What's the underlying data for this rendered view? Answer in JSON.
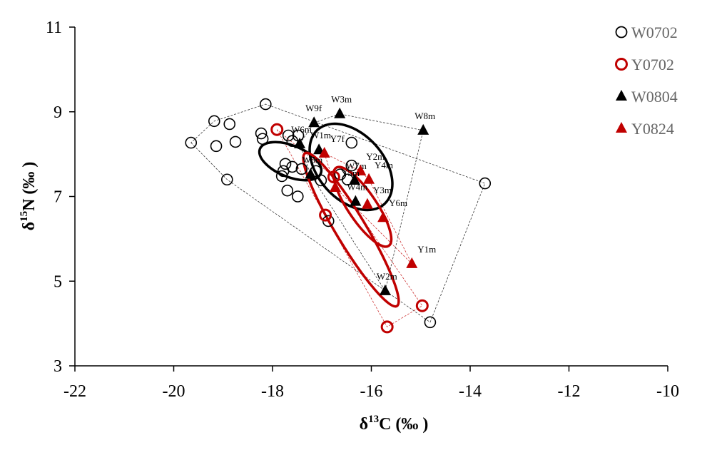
{
  "chart_data": {
    "type": "scatter",
    "xlabel": "δ13C (‰ )",
    "ylabel": "δ15N (‰ )",
    "xlim": [
      -22,
      -10
    ],
    "ylim": [
      3,
      11
    ],
    "xticks": [
      -22,
      -20,
      -18,
      -16,
      -14,
      -12,
      -10
    ],
    "yticks": [
      3,
      5,
      7,
      9,
      11
    ],
    "grid": false,
    "legend": "top-right",
    "series": [
      {
        "name": "W0702",
        "marker": "circle-open",
        "color": "#000000",
        "points": [
          [
            -19.65,
            8.27
          ],
          [
            -19.18,
            8.78
          ],
          [
            -19.14,
            8.19
          ],
          [
            -18.87,
            8.71
          ],
          [
            -18.75,
            8.29
          ],
          [
            -18.92,
            7.4
          ],
          [
            -18.14,
            9.18
          ],
          [
            -18.23,
            8.49
          ],
          [
            -18.2,
            8.36
          ],
          [
            -17.68,
            8.44
          ],
          [
            -17.48,
            8.44
          ],
          [
            -17.6,
            8.31
          ],
          [
            -17.74,
            7.77
          ],
          [
            -17.78,
            7.6
          ],
          [
            -17.6,
            7.7
          ],
          [
            -17.41,
            7.65
          ],
          [
            -17.12,
            7.6
          ],
          [
            -17.02,
            7.38
          ],
          [
            -17.7,
            7.14
          ],
          [
            -17.49,
            7.0
          ],
          [
            -17.81,
            7.48
          ],
          [
            -16.4,
            8.27
          ],
          [
            -16.4,
            7.73
          ],
          [
            -16.48,
            7.4
          ],
          [
            -16.87,
            6.42
          ],
          [
            -16.63,
            7.52
          ],
          [
            -13.7,
            7.31
          ],
          [
            -14.81,
            4.03
          ]
        ]
      },
      {
        "name": "Y0702",
        "marker": "circle-open",
        "color": "#c00000",
        "points": [
          [
            -17.91,
            8.58
          ],
          [
            -16.93,
            6.56
          ],
          [
            -16.76,
            7.46
          ],
          [
            -15.68,
            3.92
          ],
          [
            -14.97,
            4.42
          ]
        ]
      },
      {
        "name": "W0804",
        "marker": "triangle",
        "color": "#000000",
        "points": [
          {
            "x": -17.16,
            "y": 8.74,
            "label": "W9f"
          },
          {
            "x": -16.64,
            "y": 8.95,
            "label": "W3m"
          },
          {
            "x": -14.95,
            "y": 8.56,
            "label": "W8m"
          },
          {
            "x": -17.45,
            "y": 8.24,
            "label": "W6m"
          },
          {
            "x": -17.06,
            "y": 8.1,
            "label": "W1m"
          },
          {
            "x": -17.23,
            "y": 7.52,
            "label": "W5m"
          },
          {
            "x": -16.34,
            "y": 7.38,
            "label": "W7m"
          },
          {
            "x": -16.32,
            "y": 6.88,
            "label": "W4m"
          },
          {
            "x": -15.72,
            "y": 4.77,
            "label": "W2m"
          }
        ]
      },
      {
        "name": "Y0824",
        "marker": "triangle",
        "color": "#c00000",
        "points": [
          {
            "x": -16.95,
            "y": 8.02,
            "label": "Y7f"
          },
          {
            "x": -16.22,
            "y": 7.6,
            "label": "Y2m"
          },
          {
            "x": -16.05,
            "y": 7.4,
            "label": "Y4m"
          },
          {
            "x": -16.73,
            "y": 7.21,
            "label": "Y5m"
          },
          {
            "x": -16.08,
            "y": 6.81,
            "label": "Y3m"
          },
          {
            "x": -15.76,
            "y": 6.5,
            "label": "Y6m"
          },
          {
            "x": -15.18,
            "y": 5.41,
            "label": "Y1m"
          }
        ]
      }
    ]
  }
}
